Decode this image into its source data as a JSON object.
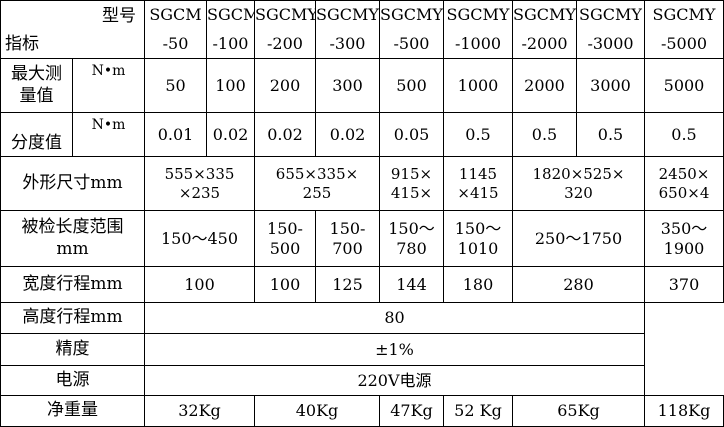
{
  "header": {
    "model_label": "型号",
    "indicator_label": "指标",
    "models": [
      {
        "series": "SGCM",
        "code": "-50"
      },
      {
        "series": "SGCM",
        "code": "-100"
      },
      {
        "series": "SGCMY",
        "code": "-200"
      },
      {
        "series": "SGCMY",
        "code": "-300"
      },
      {
        "series": "SGCMY",
        "code": "-500"
      },
      {
        "series": "SGCMY",
        "code": "-1000"
      },
      {
        "series": "SGCMY",
        "code": "-2000"
      },
      {
        "series": "SGCMY",
        "code": "-3000"
      },
      {
        "series": "SGCMY",
        "code": "-5000"
      }
    ]
  },
  "rows": {
    "max_value": {
      "label_line1": "最大测",
      "label_line2": "量值",
      "unit": "N•m",
      "values": [
        "50",
        "100",
        "200",
        "300",
        "500",
        "1000",
        "2000",
        "3000",
        "5000"
      ]
    },
    "division": {
      "label": "分度值",
      "unit": "N•m",
      "values": [
        "0.01",
        "0.02",
        "0.02",
        "0.02",
        "0.05",
        "0.5",
        "0.5",
        "0.5",
        "0.5"
      ]
    },
    "dimensions": {
      "label": "外形尺寸mm",
      "cells": [
        {
          "line1": "555×335",
          "line2": "×235"
        },
        {
          "line1": "655×335×",
          "line2": "255"
        },
        {
          "line1": "915×",
          "line2": "415×"
        },
        {
          "line1": "1145",
          "line2": "×415"
        },
        {
          "line1": "1820×525×",
          "line2": "320"
        },
        {
          "line1": "2450×",
          "line2": "650×4"
        }
      ]
    },
    "length_range": {
      "label_line1": "被检长度范围",
      "label_line2": "mm",
      "cells": [
        {
          "line1": "150～450"
        },
        {
          "line1": "150-",
          "line2": "500"
        },
        {
          "line1": "150-",
          "line2": "700"
        },
        {
          "line1": "150～",
          "line2": "780"
        },
        {
          "line1": "150～",
          "line2": "1010"
        },
        {
          "line1": "250～1750"
        },
        {
          "line1": "350～",
          "line2": "1900"
        }
      ]
    },
    "width_travel": {
      "label": "宽度行程mm",
      "values": [
        "100",
        "100",
        "125",
        "144",
        "180",
        "280",
        "370"
      ]
    },
    "height_travel": {
      "label": "高度行程mm",
      "value": "80"
    },
    "accuracy": {
      "label": "精度",
      "value": "±1%"
    },
    "power": {
      "label": "电源",
      "value": "220V电源"
    },
    "net_weight": {
      "label": "净重量",
      "values": [
        "32Kg",
        "40Kg",
        "47Kg",
        "52 Kg",
        "65Kg",
        "118Kg"
      ]
    }
  }
}
